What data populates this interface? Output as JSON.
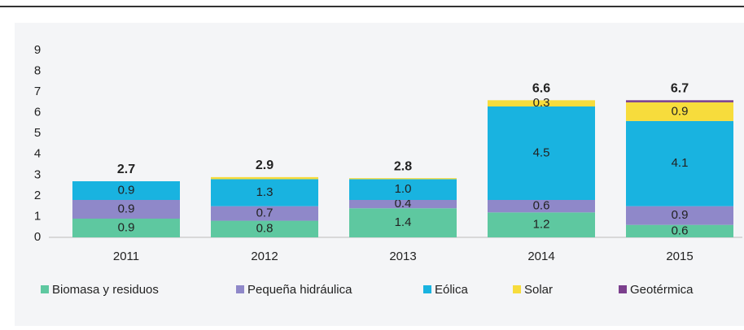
{
  "chart_data": {
    "type": "stacked_bar",
    "categories": [
      "2011",
      "2012",
      "2013",
      "2014",
      "2015"
    ],
    "series": [
      {
        "name": "Biomasa y residuos",
        "color": "#5ec8a0",
        "values": [
          0.9,
          0.8,
          1.4,
          1.2,
          0.6
        ],
        "value_labels": [
          "0.9",
          "0.8",
          "1.4",
          "1.2",
          "0.6"
        ]
      },
      {
        "name": "Pequeña hidráulica",
        "color": "#8f88c9",
        "values": [
          0.9,
          0.7,
          0.4,
          0.6,
          0.9
        ],
        "value_labels": [
          "0.9",
          "0.7",
          "0.4",
          "0.6",
          "0.9"
        ]
      },
      {
        "name": "Eólica",
        "color": "#19b3e0",
        "values": [
          0.9,
          1.3,
          1.0,
          4.5,
          4.1
        ],
        "value_labels": [
          "0.9",
          "1.3",
          "1.0",
          "4.5",
          "4.1"
        ]
      },
      {
        "name": "Solar",
        "color": "#f7dc3c",
        "values": [
          0,
          0.1,
          0.05,
          0.3,
          0.9
        ],
        "value_labels": [
          null,
          null,
          null,
          "0.3",
          "0.9"
        ]
      },
      {
        "name": "Geotérmica",
        "color": "#7b3f8d",
        "values": [
          0,
          0,
          0,
          0,
          0.1
        ],
        "value_labels": [
          null,
          null,
          null,
          null,
          null
        ]
      }
    ],
    "totals": [
      2.7,
      2.9,
      2.8,
      6.6,
      6.7
    ],
    "ylim": [
      0,
      9
    ],
    "yticks": [
      0,
      1,
      2,
      3,
      4,
      5,
      6,
      7,
      8,
      9
    ]
  }
}
